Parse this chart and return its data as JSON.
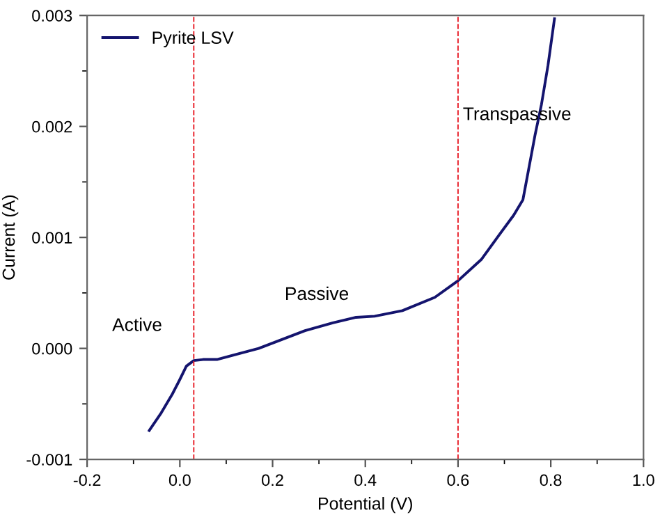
{
  "chart_data": {
    "type": "line",
    "xlabel": "Potential (V)",
    "ylabel": "Current (A)",
    "xlim": [
      -0.2,
      1.0
    ],
    "xticks": [
      {
        "value": -0.2,
        "label": "-0.2"
      },
      {
        "value": 0.0,
        "label": "0.0"
      },
      {
        "value": 0.2,
        "label": "0.2"
      },
      {
        "value": 0.4,
        "label": "0.4"
      },
      {
        "value": 0.6,
        "label": "0.6"
      },
      {
        "value": 0.8,
        "label": "0.8"
      },
      {
        "value": 1.0,
        "label": "1.0"
      }
    ],
    "ylim": [
      -0.001,
      0.003
    ],
    "yticks": [
      {
        "value": -0.001,
        "label": "-0.001"
      },
      {
        "value": 0.0,
        "label": "0.000"
      },
      {
        "value": 0.001,
        "label": "0.001"
      },
      {
        "value": 0.002,
        "label": "0.002"
      },
      {
        "value": 0.003,
        "label": "0.003"
      }
    ],
    "series": [
      {
        "name": "Pyrite LSV",
        "color": "#14146e",
        "x": [
          -0.066,
          -0.04,
          -0.016,
          0.0,
          0.014,
          0.03,
          0.05,
          0.08,
          0.17,
          0.27,
          0.33,
          0.38,
          0.42,
          0.48,
          0.55,
          0.6,
          0.65,
          0.69,
          0.72,
          0.74,
          0.766,
          0.78,
          0.794,
          0.808
        ],
        "values": [
          -0.00074,
          -0.00058,
          -0.00041,
          -0.00028,
          -0.00016,
          -0.00011,
          -0.0001,
          -0.0001,
          0.0,
          0.00016,
          0.00023,
          0.00028,
          0.00029,
          0.00034,
          0.00046,
          0.00061,
          0.0008,
          0.00103,
          0.0012,
          0.00134,
          0.00192,
          0.0022,
          0.00255,
          0.00297
        ]
      }
    ],
    "ref_lines": [
      {
        "axis": "x",
        "value": 0.03,
        "color": "#e8202a",
        "line_style": "dashed"
      },
      {
        "axis": "x",
        "value": 0.6,
        "color": "#e8202a",
        "line_style": "dashed"
      }
    ],
    "annotations": [
      "Active",
      "Passive",
      {
        "text": "Transpassive",
        "x": 0.6,
        "y": 0.0021
      }
    ],
    "legend": "top left",
    "marker": "none",
    "line_style": "solid",
    "grid": false
  }
}
